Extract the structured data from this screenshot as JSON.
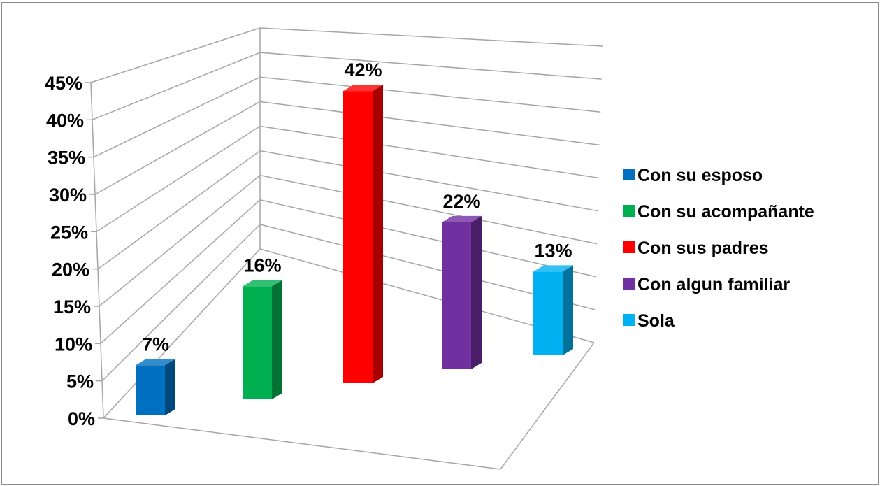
{
  "chart_data": {
    "type": "bar",
    "title": "",
    "xlabel": "",
    "ylabel": "",
    "ylim": [
      0,
      45
    ],
    "y_ticks": [
      "0%",
      "5%",
      "10%",
      "15%",
      "20%",
      "25%",
      "30%",
      "35%",
      "40%",
      "45%"
    ],
    "categories": [
      "Con su esposo",
      "Con su acompañante",
      "Con sus padres",
      "Con algun familiar",
      "Sola"
    ],
    "values": [
      7,
      16,
      42,
      22,
      13
    ],
    "data_labels": [
      "7%",
      "16%",
      "42%",
      "22%",
      "13%"
    ],
    "colors": [
      "#0070C0",
      "#00B050",
      "#FF0000",
      "#7030A0",
      "#00B0F0"
    ],
    "grid": true,
    "legend_position": "right",
    "style": "3d-column"
  }
}
